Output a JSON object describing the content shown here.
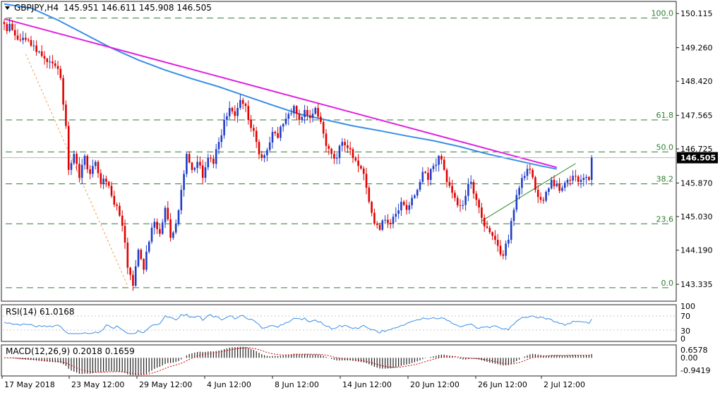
{
  "header": {
    "symbol": "GBPJPY,H4",
    "ohlc": "145.951 146.611 145.908 146.505"
  },
  "colors": {
    "bull": "#1f3dc8",
    "bear": "#e00000",
    "trendline": "#e020e0",
    "ma": "#3a8ee6",
    "fib": "#2e7d32",
    "support": "#2e8b2e",
    "fib_fan": "#f0a050",
    "rsi": "#3a8ee6",
    "signal": "#cc0000",
    "macd_hist": "#222222"
  },
  "panels": {
    "rsi_label": "RSI(14) 61.0168",
    "macd_label": "MACD(12,26,9) 0.2018 0.1659"
  },
  "chart_data": [
    {
      "type": "candlestick",
      "title": "GBPJPY,H4",
      "ylim": [
        142.93,
        150.4
      ],
      "y_ticks": [
        "150.115",
        "149.260",
        "148.420",
        "147.565",
        "146.725",
        "145.870",
        "145.030",
        "144.190",
        "143.335"
      ],
      "x_ticks": [
        "17 May 2018",
        "23 May 12:00",
        "29 May 12:00",
        "4 Jun 12:00",
        "8 Jun 12:00",
        "14 Jun 12:00",
        "20 Jun 12:00",
        "26 Jun 12:00",
        "2 Jul 12:00"
      ],
      "last_price": "146.505",
      "fibonacci": [
        {
          "label": "100.0",
          "value": 150.0
        },
        {
          "label": "61.8",
          "value": 147.45
        },
        {
          "label": "50.0",
          "value": 146.65
        },
        {
          "label": "38.2",
          "value": 145.85
        },
        {
          "label": "23.6",
          "value": 144.85
        },
        {
          "label": "0.0",
          "value": 143.25
        }
      ],
      "descending_trendline": {
        "from": [
          0,
          149.98
        ],
        "to": [
          206,
          146.26
        ]
      },
      "ascending_trendline": {
        "from": [
          178,
          144.92
        ],
        "to": [
          213,
          146.36
        ]
      },
      "fib_fan_line": {
        "from": [
          8,
          149.1
        ],
        "to": [
          46,
          143.3
        ]
      },
      "moving_average": [
        [
          0,
          150.35
        ],
        [
          10,
          150.25
        ],
        [
          20,
          149.95
        ],
        [
          30,
          149.6
        ],
        [
          40,
          149.25
        ],
        [
          50,
          148.95
        ],
        [
          60,
          148.7
        ],
        [
          70,
          148.48
        ],
        [
          80,
          148.28
        ],
        [
          90,
          148.05
        ],
        [
          100,
          147.82
        ],
        [
          110,
          147.6
        ],
        [
          120,
          147.45
        ],
        [
          130,
          147.3
        ],
        [
          140,
          147.18
        ],
        [
          150,
          147.05
        ],
        [
          160,
          146.93
        ],
        [
          170,
          146.78
        ],
        [
          180,
          146.6
        ],
        [
          190,
          146.45
        ],
        [
          200,
          146.3
        ],
        [
          206,
          146.22
        ]
      ],
      "anchors": [
        [
          0,
          149.85
        ],
        [
          3,
          149.7
        ],
        [
          6,
          149.45
        ],
        [
          9,
          149.45
        ],
        [
          12,
          149.15
        ],
        [
          14,
          149.05
        ],
        [
          16,
          148.9
        ],
        [
          19,
          148.8
        ],
        [
          21,
          148.5
        ],
        [
          23,
          147.3
        ],
        [
          24,
          146.2
        ],
        [
          26,
          146.6
        ],
        [
          28,
          146.0
        ],
        [
          30,
          146.55
        ],
        [
          32,
          146.1
        ],
        [
          34,
          146.4
        ],
        [
          36,
          145.85
        ],
        [
          38,
          145.9
        ],
        [
          40,
          145.55
        ],
        [
          42,
          145.3
        ],
        [
          44,
          144.8
        ],
        [
          46,
          143.75
        ],
        [
          48,
          143.3
        ],
        [
          50,
          144.2
        ],
        [
          52,
          143.7
        ],
        [
          54,
          144.4
        ],
        [
          56,
          144.9
        ],
        [
          58,
          144.6
        ],
        [
          60,
          145.25
        ],
        [
          62,
          144.5
        ],
        [
          64,
          144.85
        ],
        [
          66,
          145.7
        ],
        [
          68,
          146.6
        ],
        [
          70,
          146.2
        ],
        [
          72,
          146.4
        ],
        [
          74,
          146.0
        ],
        [
          76,
          146.5
        ],
        [
          78,
          146.35
        ],
        [
          80,
          146.9
        ],
        [
          82,
          147.45
        ],
        [
          84,
          147.75
        ],
        [
          86,
          147.55
        ],
        [
          88,
          147.95
        ],
        [
          90,
          147.8
        ],
        [
          92,
          147.25
        ],
        [
          94,
          146.9
        ],
        [
          96,
          146.5
        ],
        [
          98,
          146.7
        ],
        [
          100,
          147.15
        ],
        [
          102,
          147.0
        ],
        [
          104,
          147.35
        ],
        [
          106,
          147.6
        ],
        [
          108,
          147.8
        ],
        [
          110,
          147.45
        ],
        [
          112,
          147.7
        ],
        [
          114,
          147.5
        ],
        [
          116,
          147.75
        ],
        [
          118,
          147.4
        ],
        [
          120,
          146.8
        ],
        [
          122,
          146.6
        ],
        [
          124,
          146.5
        ],
        [
          126,
          146.9
        ],
        [
          128,
          146.75
        ],
        [
          130,
          146.5
        ],
        [
          132,
          146.3
        ],
        [
          134,
          146.1
        ],
        [
          136,
          145.4
        ],
        [
          138,
          144.85
        ],
        [
          140,
          144.7
        ],
        [
          142,
          144.95
        ],
        [
          144,
          144.85
        ],
        [
          146,
          145.1
        ],
        [
          148,
          145.4
        ],
        [
          150,
          145.2
        ],
        [
          152,
          145.5
        ],
        [
          154,
          145.7
        ],
        [
          156,
          146.15
        ],
        [
          158,
          145.95
        ],
        [
          160,
          146.3
        ],
        [
          162,
          146.55
        ],
        [
          164,
          146.2
        ],
        [
          166,
          145.8
        ],
        [
          168,
          145.5
        ],
        [
          170,
          145.3
        ],
        [
          172,
          145.55
        ],
        [
          174,
          145.9
        ],
        [
          176,
          145.45
        ],
        [
          178,
          145.0
        ],
        [
          180,
          144.75
        ],
        [
          182,
          144.55
        ],
        [
          184,
          144.3
        ],
        [
          186,
          144.05
        ],
        [
          188,
          144.45
        ],
        [
          190,
          145.2
        ],
        [
          192,
          145.75
        ],
        [
          194,
          146.05
        ],
        [
          196,
          146.2
        ],
        [
          198,
          145.7
        ],
        [
          200,
          145.45
        ],
        [
          202,
          145.65
        ],
        [
          204,
          145.95
        ],
        [
          206,
          145.85
        ],
        [
          208,
          145.75
        ],
        [
          210,
          145.95
        ],
        [
          212,
          146.05
        ],
        [
          214,
          145.9
        ],
        [
          216,
          146.0
        ],
        [
          218,
          145.95
        ],
        [
          219,
          146.5
        ]
      ]
    },
    {
      "type": "line",
      "title": "RSI(14) 61.0168",
      "ylim": [
        0,
        100
      ],
      "y_ticks": [
        "100",
        "70",
        "30",
        "0"
      ],
      "last_value": 61.0168
    },
    {
      "type": "bar",
      "title": "MACD(12,26,9) 0.2018 0.1659",
      "y_ticks": [
        "0.6578",
        "0.00",
        "-0.9419"
      ],
      "macd": 0.2018,
      "signal": 0.1659
    }
  ]
}
